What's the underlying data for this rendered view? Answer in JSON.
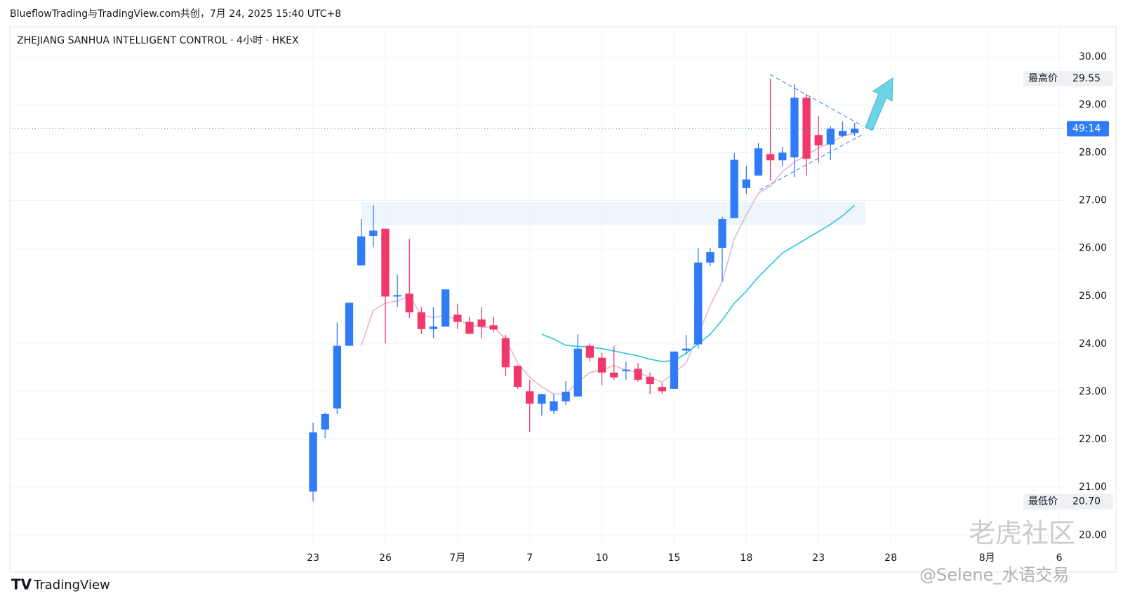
{
  "header": "BlueflowTrading与TradingView.com共创，7月 24, 2025 15:40 UTC+8",
  "footer": "TradingView",
  "watermark": [
    "老虎社区",
    "@Selene_水语交易"
  ],
  "chart_data": {
    "type": "candlestick",
    "title": "ZHEJIANG SANHUA INTELLIGENT CONTROL · 4小时 · HKEX",
    "up_color": "#2f7cf6",
    "down_color": "#f0386b",
    "open": [
      20.91,
      22.21,
      22.65,
      23.96,
      25.64,
      26.26,
      26.41,
      24.99,
      25.05,
      24.66,
      24.31,
      24.36,
      24.61,
      24.46,
      24.51,
      24.39,
      24.12,
      23.54,
      23.01,
      22.75,
      22.6,
      22.8,
      22.9,
      23.96,
      23.71,
      23.4,
      23.43,
      23.48,
      23.31,
      23.1,
      23.06,
      23.86,
      23.99,
      25.7,
      26.01,
      26.63,
      27.26,
      27.52,
      27.97,
      27.84,
      27.9,
      29.15,
      28.37,
      28.17,
      28.35,
      28.41
    ],
    "high": [
      22.35,
      22.56,
      24.45,
      24.86,
      26.61,
      26.9,
      26.41,
      25.45,
      26.2,
      24.77,
      24.77,
      25.14,
      24.84,
      24.57,
      24.77,
      24.57,
      24.19,
      23.55,
      23.25,
      22.95,
      22.95,
      23.22,
      24.2,
      24.01,
      23.81,
      23.96,
      23.63,
      23.6,
      23.4,
      23.18,
      23.84,
      24.19,
      26.0,
      26.01,
      26.66,
      27.99,
      27.72,
      28.2,
      29.55,
      28.12,
      29.43,
      29.23,
      28.77,
      28.55,
      28.65,
      28.62
    ],
    "low": [
      20.7,
      22.03,
      22.53,
      23.96,
      25.64,
      26.02,
      24.01,
      24.77,
      24.54,
      24.21,
      24.12,
      24.36,
      24.31,
      24.21,
      24.12,
      24.24,
      23.33,
      23.06,
      22.16,
      22.5,
      22.53,
      22.72,
      22.9,
      23.63,
      23.13,
      23.25,
      23.25,
      23.21,
      22.95,
      22.95,
      23.06,
      23.78,
      23.9,
      25.63,
      25.3,
      26.63,
      27.14,
      27.52,
      27.41,
      27.72,
      27.49,
      27.52,
      27.79,
      27.84,
      28.32,
      28.35
    ],
    "close": [
      22.15,
      22.53,
      23.96,
      24.86,
      26.25,
      26.37,
      24.99,
      25.02,
      24.66,
      24.31,
      24.36,
      25.14,
      24.46,
      24.21,
      24.36,
      24.3,
      23.51,
      23.1,
      22.75,
      22.95,
      22.8,
      23.0,
      23.9,
      23.71,
      23.4,
      23.3,
      23.46,
      23.25,
      23.16,
      23.01,
      23.84,
      23.9,
      25.7,
      25.92,
      26.61,
      27.85,
      27.44,
      28.09,
      27.84,
      28.0,
      29.15,
      27.87,
      28.15,
      28.5,
      28.45,
      28.5
    ],
    "ma_lines": [
      {
        "color": "#e8b4d4",
        "values": [
          null,
          null,
          null,
          null,
          23.96,
          24.7,
          24.85,
          24.9,
          25.0,
          24.6,
          24.55,
          24.6,
          24.5,
          24.4,
          24.35,
          24.35,
          24.1,
          23.6,
          23.3,
          23.1,
          22.95,
          22.95,
          23.2,
          23.4,
          23.45,
          23.55,
          23.45,
          23.4,
          23.3,
          23.2,
          23.4,
          23.6,
          24.2,
          24.8,
          25.3,
          26.2,
          26.7,
          27.15,
          27.3,
          27.6,
          27.8,
          27.95,
          28.1,
          28.2,
          28.35,
          28.4
        ]
      },
      {
        "color": "#26c6da",
        "values": [
          null,
          null,
          null,
          null,
          null,
          null,
          null,
          null,
          null,
          null,
          null,
          null,
          null,
          null,
          null,
          null,
          null,
          null,
          null,
          24.2,
          24.1,
          23.97,
          23.95,
          23.93,
          23.9,
          23.85,
          23.8,
          23.75,
          23.68,
          23.63,
          23.65,
          23.8,
          24.0,
          24.2,
          24.5,
          24.85,
          25.1,
          25.4,
          25.65,
          25.9,
          26.05,
          26.2,
          26.35,
          26.5,
          26.68,
          26.9
        ]
      }
    ],
    "xlim": [
      -25.2,
      62.4
    ],
    "xticks": [
      {
        "value": 0,
        "label": "23"
      },
      {
        "value": 6,
        "label": "26"
      },
      {
        "value": 12,
        "label": "7月"
      },
      {
        "value": 18,
        "label": "7"
      },
      {
        "value": 24,
        "label": "10"
      },
      {
        "value": 30,
        "label": "15"
      },
      {
        "value": 36,
        "label": "18"
      },
      {
        "value": 42,
        "label": "23"
      },
      {
        "value": 48,
        "label": "28"
      },
      {
        "value": 56,
        "label": "8月"
      },
      {
        "value": 62,
        "label": "6"
      }
    ],
    "ylim": [
      19.74,
      30.62
    ],
    "yticks": [
      {
        "value": 20,
        "label": "20.00"
      },
      {
        "value": 21,
        "label": "21.00"
      },
      {
        "value": 22,
        "label": "22.00"
      },
      {
        "value": 23,
        "label": "23.00"
      },
      {
        "value": 24,
        "label": "24.00"
      },
      {
        "value": 25,
        "label": "25.00"
      },
      {
        "value": 26,
        "label": "26.00"
      },
      {
        "value": 27,
        "label": "27.00"
      },
      {
        "value": 28,
        "label": "28.00"
      },
      {
        "value": 29,
        "label": "29.00"
      },
      {
        "value": 30,
        "label": "30.00"
      }
    ],
    "grid": true,
    "price_tags": [
      {
        "label": "最高价",
        "value": 29.55,
        "value_label": "29.55"
      },
      {
        "label": "最低价",
        "value": 20.7,
        "value_label": "20.70"
      }
    ],
    "current_price": {
      "value": 28.5,
      "label": "49:14"
    }
  }
}
